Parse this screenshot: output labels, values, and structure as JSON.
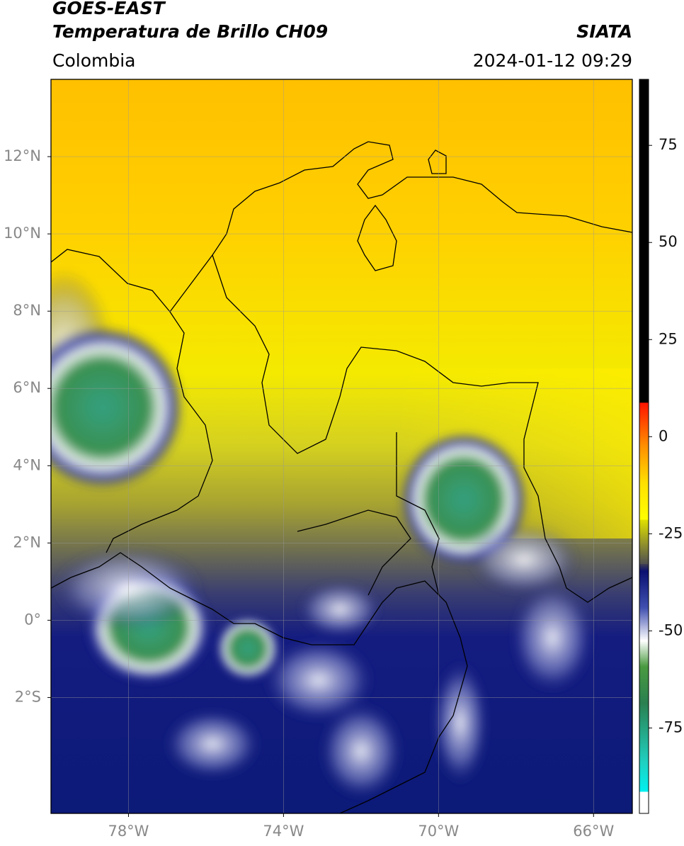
{
  "header": {
    "source": "GOES-EAST",
    "product": "Temperatura de Brillo CH09",
    "organization": "SIATA",
    "region": "Colombia",
    "datetime": "2024-01-12 09:29"
  },
  "map": {
    "xlim": [
      -80,
      -65
    ],
    "ylim": [
      -5,
      14
    ],
    "xticks": [
      {
        "value": -78,
        "label": "78°W"
      },
      {
        "value": -74,
        "label": "74°W"
      },
      {
        "value": -70,
        "label": "70°W"
      },
      {
        "value": -66,
        "label": "66°W"
      }
    ],
    "yticks": [
      {
        "value": 12,
        "label": "12°N"
      },
      {
        "value": 10,
        "label": "10°N"
      },
      {
        "value": 8,
        "label": "8°N"
      },
      {
        "value": 6,
        "label": "6°N"
      },
      {
        "value": 4,
        "label": "4°N"
      },
      {
        "value": 2,
        "label": "2°N"
      },
      {
        "value": 0,
        "label": "0°"
      },
      {
        "value": -2,
        "label": "2°S"
      }
    ],
    "grid": true
  },
  "colorbar": {
    "lim": [
      -97,
      92
    ],
    "ticks": [
      75,
      50,
      25,
      0,
      -25,
      -50,
      -75
    ]
  }
}
